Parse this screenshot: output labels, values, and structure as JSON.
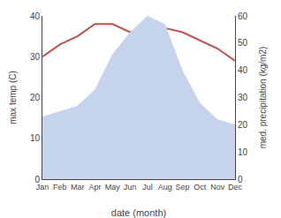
{
  "chart_data": {
    "type": "line",
    "xlabel": "date (month)",
    "ylabel": "max temp (C)",
    "y2label": "med. precipitation (kg/m2)",
    "categories": [
      "Jan",
      "Feb",
      "Mar",
      "Apr",
      "May",
      "Jun",
      "Jul",
      "Aug",
      "Sep",
      "Oct",
      "Nov",
      "Dec"
    ],
    "series": [
      {
        "type": "area",
        "axis": "y2",
        "color": "#c5d4ec",
        "values": [
          23,
          25,
          27,
          33,
          46,
          54,
          60,
          57,
          40,
          28,
          22,
          20
        ]
      },
      {
        "type": "line",
        "color": "#c0504d",
        "values": [
          30,
          33,
          35,
          38,
          38,
          36,
          37,
          37,
          36,
          34,
          32,
          29
        ]
      }
    ],
    "ylim": [
      0,
      40
    ],
    "yticks": [
      0,
      10,
      20,
      30,
      40
    ],
    "y2lim": [
      0,
      60
    ],
    "y2ticks": [
      0,
      10,
      20,
      30,
      40,
      50,
      60
    ],
    "grid": false
  }
}
